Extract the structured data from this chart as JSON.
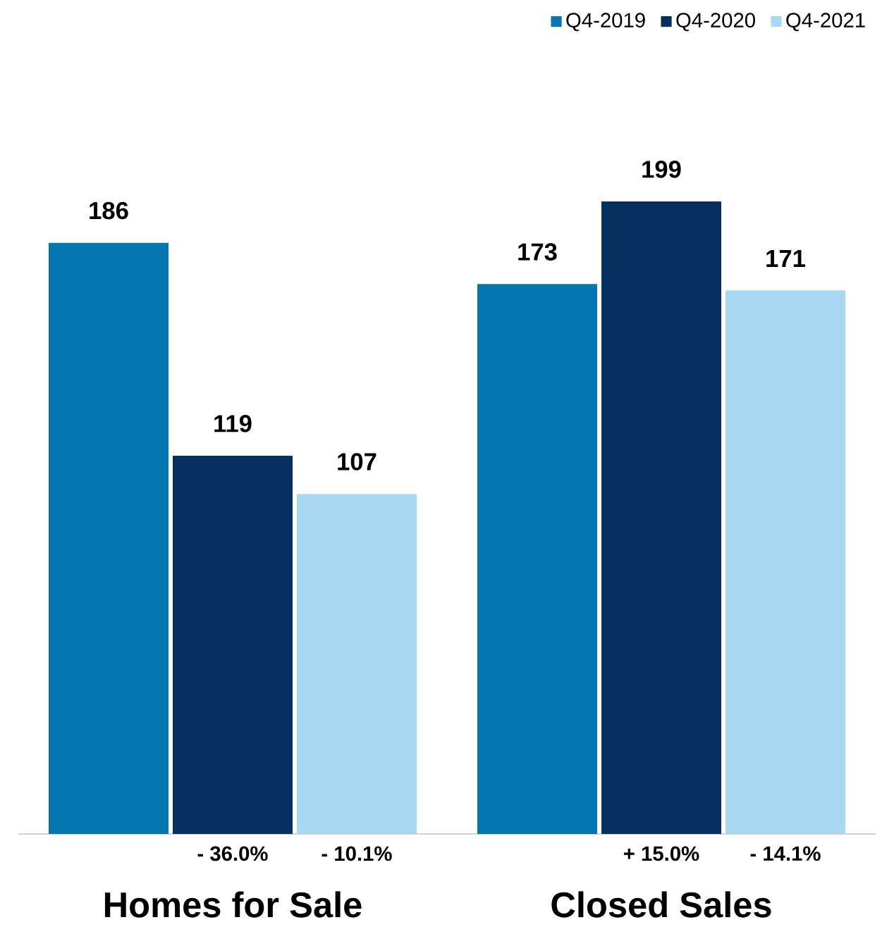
{
  "chart_data": {
    "type": "bar",
    "categories": [
      "Homes for Sale",
      "Closed Sales"
    ],
    "series": [
      {
        "name": "Q4-2019",
        "color": "#0577b0",
        "values": [
          186,
          173
        ]
      },
      {
        "name": "Q4-2020",
        "color": "#06305f",
        "values": [
          119,
          199
        ]
      },
      {
        "name": "Q4-2021",
        "color": "#a9d8f3",
        "values": [
          107,
          171
        ]
      }
    ],
    "data_labels": true,
    "legend": "top right",
    "tick_labels": "x",
    "annotations": [
      "- 36.0%",
      "- 10.1%",
      "+ 15.0%",
      "- 14.1%"
    ]
  }
}
